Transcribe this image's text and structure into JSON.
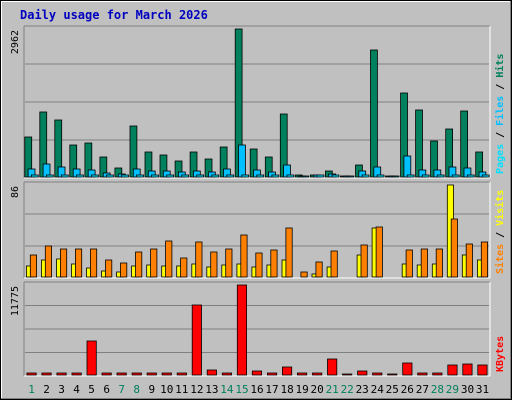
{
  "title": "Daily usage for March 2026",
  "colors": {
    "title": "#0000c0",
    "hits": "#00805c",
    "files": "#00c0ff",
    "pages": "#00e0ff",
    "visits": "#ffff00",
    "sites": "#ff8000",
    "kbytes": "#ff0000",
    "day_weekday": "#000000",
    "day_weekend": "#00805c",
    "panel_bg": "#c0c0c0"
  },
  "chart_data": {
    "type": "bar",
    "days": [
      "1",
      "2",
      "3",
      "4",
      "5",
      "6",
      "7",
      "8",
      "9",
      "10",
      "11",
      "12",
      "13",
      "14",
      "15",
      "16",
      "17",
      "18",
      "19",
      "20",
      "21",
      "22",
      "23",
      "24",
      "25",
      "26",
      "27",
      "28",
      "29",
      "30",
      "31"
    ],
    "weekend_days": [
      "1",
      "7",
      "8",
      "14",
      "15",
      "21",
      "22",
      "28",
      "29"
    ],
    "panels": [
      {
        "name": "hits_files_pages",
        "ymax_label": "2962",
        "ymax": 2962,
        "legend": [
          "Pages",
          "Files",
          "Hits"
        ],
        "series": [
          {
            "name": "Hits",
            "values": [
              800,
              1300,
              1150,
              650,
              680,
              400,
              180,
              1020,
              500,
              450,
              330,
              510,
              360,
              600,
              2962,
              570,
              410,
              1260,
              30,
              40,
              130,
              0,
              240,
              2550,
              0,
              1680,
              1350,
              720,
              970,
              1330,
              500
            ]
          },
          {
            "name": "Files",
            "values": [
              160,
              260,
              210,
              160,
              150,
              80,
              60,
              160,
              130,
              120,
              100,
              120,
              100,
              160,
              640,
              140,
              110,
              250,
              0,
              20,
              60,
              0,
              130,
              210,
              0,
              430,
              150,
              150,
              200,
              190,
              100
            ]
          },
          {
            "name": "Pages",
            "values": [
              20,
              30,
              30,
              30,
              20,
              20,
              10,
              30,
              20,
              20,
              20,
              20,
              20,
              20,
              20,
              20,
              20,
              30,
              0,
              10,
              10,
              0,
              20,
              20,
              0,
              20,
              20,
              20,
              20,
              20,
              20
            ]
          }
        ]
      },
      {
        "name": "visits_sites",
        "ymax_label": "86",
        "ymax": 86,
        "legend": [
          "Sites",
          "Visits"
        ],
        "series": [
          {
            "name": "Visits",
            "values": [
              10,
              16,
              17,
              12,
              8,
              6,
              5,
              10,
              11,
              10,
              10,
              12,
              9,
              11,
              12,
              9,
              11,
              16,
              0,
              3,
              9,
              0,
              21,
              46,
              0,
              12,
              11,
              12,
              86,
              21,
              16
            ]
          },
          {
            "name": "Sites",
            "values": [
              21,
              29,
              26,
              26,
              26,
              16,
              13,
              23,
              26,
              34,
              18,
              33,
              23,
              26,
              39,
              22,
              25,
              46,
              5,
              14,
              24,
              0,
              30,
              47,
              0,
              25,
              26,
              26,
              54,
              31,
              33
            ]
          }
        ]
      },
      {
        "name": "kbytes",
        "ymax_label": "11775",
        "ymax": 11775,
        "legend": [
          "KBytes"
        ],
        "series": [
          {
            "name": "KBytes",
            "values": [
              90,
              90,
              90,
              160,
              4500,
              60,
              50,
              60,
              100,
              130,
              130,
              9100,
              650,
              170,
              11775,
              560,
              280,
              1030,
              60,
              100,
              2050,
              0,
              560,
              200,
              0,
              1530,
              150,
              130,
              1360,
              1460,
              1360
            ]
          }
        ]
      }
    ]
  }
}
